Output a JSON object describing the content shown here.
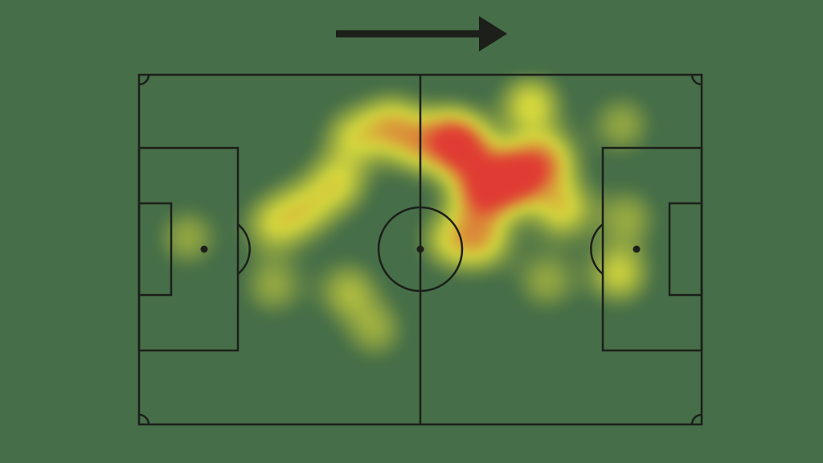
{
  "chart_data": {
    "type": "heatmap",
    "title": "",
    "pitch": {
      "length_m": 105,
      "width_m": 68,
      "line_color": "#1c1f1a",
      "grass_color": "#466e48"
    },
    "attack_direction": "right",
    "colormap": {
      "low": "#e6e23c",
      "mid": "#f2b530",
      "high": "#ee3a36"
    },
    "hotspots": [
      {
        "x": 70,
        "y": 19.8,
        "intensity": 1.0
      },
      {
        "x": 64,
        "y": 23,
        "intensity": 0.8
      },
      {
        "x": 61,
        "y": 15,
        "intensity": 0.7
      },
      {
        "x": 76,
        "y": 16.7,
        "intensity": 0.6
      },
      {
        "x": 73,
        "y": 5.8,
        "intensity": 0.5
      },
      {
        "x": 58,
        "y": 12,
        "intensity": 0.6
      },
      {
        "x": 64,
        "y": 32,
        "intensity": 0.5
      },
      {
        "x": 58,
        "y": 32,
        "intensity": 0.4
      },
      {
        "x": 79,
        "y": 26,
        "intensity": 0.5
      },
      {
        "x": 47,
        "y": 9.7,
        "intensity": 0.5
      },
      {
        "x": 52,
        "y": 13.6,
        "intensity": 0.4
      },
      {
        "x": 40,
        "y": 12,
        "intensity": 0.4
      },
      {
        "x": 37,
        "y": 21,
        "intensity": 0.45
      },
      {
        "x": 31,
        "y": 26,
        "intensity": 0.4
      },
      {
        "x": 25,
        "y": 29,
        "intensity": 0.4
      },
      {
        "x": 25,
        "y": 41,
        "intensity": 0.3
      },
      {
        "x": 39,
        "y": 42,
        "intensity": 0.35
      },
      {
        "x": 44,
        "y": 49.5,
        "intensity": 0.3
      },
      {
        "x": 9,
        "y": 31.6,
        "intensity": 0.3
      },
      {
        "x": 76,
        "y": 40,
        "intensity": 0.3
      },
      {
        "x": 89.5,
        "y": 38.6,
        "intensity": 0.45
      },
      {
        "x": 91,
        "y": 27.7,
        "intensity": 0.3
      },
      {
        "x": 90,
        "y": 9.7,
        "intensity": 0.3
      }
    ]
  }
}
